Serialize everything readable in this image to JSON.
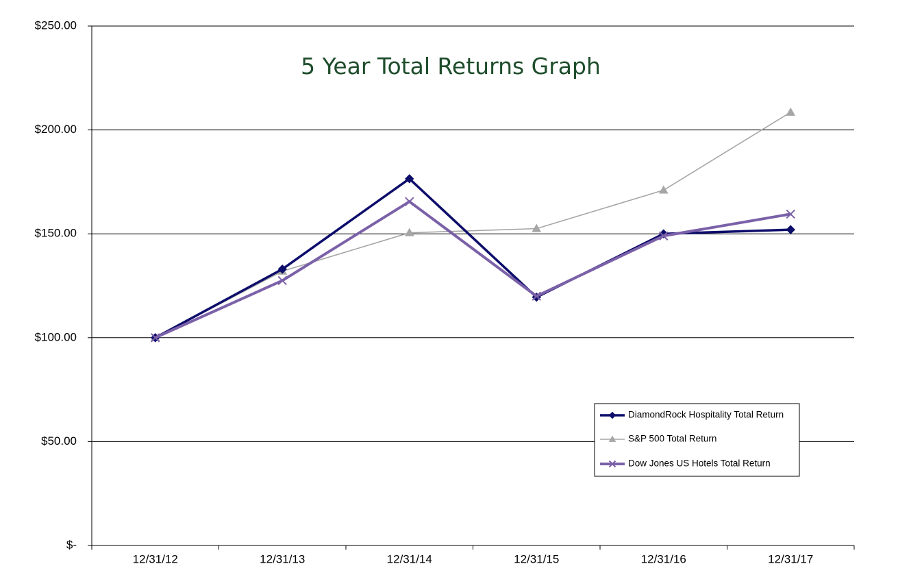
{
  "chart_data": {
    "type": "line",
    "title": "5 Year Total Returns Graph",
    "xlabel": "",
    "ylabel": "",
    "categories": [
      "12/31/12",
      "12/31/13",
      "12/31/14",
      "12/31/15",
      "12/31/16",
      "12/31/17"
    ],
    "y_tick_labels": [
      "$-",
      "$50.00",
      "$100.00",
      "$150.00",
      "$200.00",
      "$250.00"
    ],
    "y_ticks": [
      0,
      50,
      100,
      150,
      200,
      250
    ],
    "ylim": [
      0,
      250
    ],
    "grid": "horizontal",
    "legend_position": "bottom-right",
    "series": [
      {
        "name": "DiamondRock Hospitality Total Return",
        "values": [
          100,
          133,
          176.5,
          119.5,
          150,
          152
        ],
        "color": "#0d0d6b",
        "marker": "diamond"
      },
      {
        "name": "S&P 500 Total Return",
        "values": [
          100,
          132,
          150.5,
          152.5,
          171,
          208.5
        ],
        "color": "#a6a6a6",
        "marker": "triangle"
      },
      {
        "name": "Dow Jones US Hotels Total Return",
        "values": [
          100,
          127.5,
          165.5,
          120,
          149,
          159.5
        ],
        "color": "#7b61a8",
        "marker": "x"
      }
    ]
  }
}
